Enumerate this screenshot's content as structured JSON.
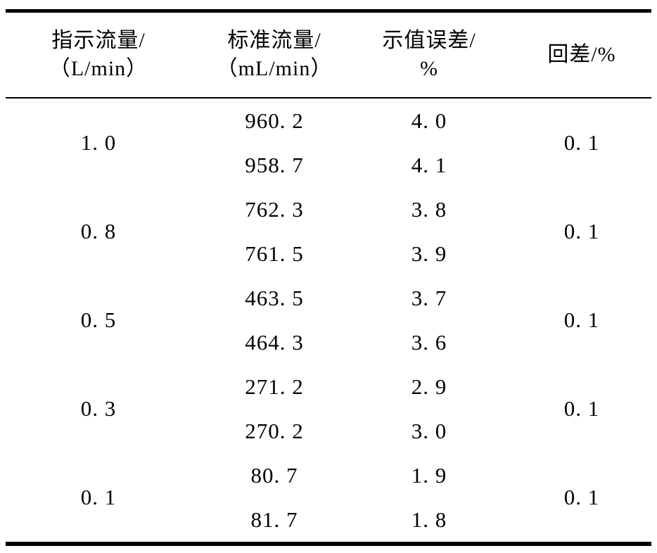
{
  "colors": {
    "background": "#ffffff",
    "text": "#000000",
    "rule": "#000000"
  },
  "table": {
    "style": "three-line-table",
    "columns": [
      {
        "id": "indicated-flow",
        "line1": "指示流量/",
        "line2": "（L/min）"
      },
      {
        "id": "standard-flow",
        "line1": "标准流量/",
        "line2": "（mL/min）"
      },
      {
        "id": "indication-error",
        "line1": "示值误差/",
        "line2": "%"
      },
      {
        "id": "hysteresis",
        "line1": "回差/%"
      }
    ],
    "groups": [
      {
        "indicated": "1. 0",
        "standard": [
          "960. 2",
          "958. 7"
        ],
        "error": [
          "4. 0",
          "4. 1"
        ],
        "hysteresis": "0. 1"
      },
      {
        "indicated": "0. 8",
        "standard": [
          "762. 3",
          "761. 5"
        ],
        "error": [
          "3. 8",
          "3. 9"
        ],
        "hysteresis": "0. 1"
      },
      {
        "indicated": "0. 5",
        "standard": [
          "463. 5",
          "464. 3"
        ],
        "error": [
          "3. 7",
          "3. 6"
        ],
        "hysteresis": "0. 1"
      },
      {
        "indicated": "0. 3",
        "standard": [
          "271. 2",
          "270. 2"
        ],
        "error": [
          "2. 9",
          "3. 0"
        ],
        "hysteresis": "0. 1"
      },
      {
        "indicated": "0. 1",
        "standard": [
          "80. 7",
          "81. 7"
        ],
        "error": [
          "1. 9",
          "1. 8"
        ],
        "hysteresis": "0. 1"
      }
    ]
  },
  "chart_data": {
    "type": "table",
    "title": "",
    "columns": [
      "指示流量/（L/min）",
      "标准流量/（mL/min）",
      "示值误差/%",
      "回差/%"
    ],
    "rows": [
      [
        "1.0",
        "960.2",
        "4.0",
        "0.1"
      ],
      [
        "1.0",
        "958.7",
        "4.1",
        "0.1"
      ],
      [
        "0.8",
        "762.3",
        "3.8",
        "0.1"
      ],
      [
        "0.8",
        "761.5",
        "3.9",
        "0.1"
      ],
      [
        "0.5",
        "463.5",
        "3.7",
        "0.1"
      ],
      [
        "0.5",
        "464.3",
        "3.6",
        "0.1"
      ],
      [
        "0.3",
        "271.2",
        "2.9",
        "0.1"
      ],
      [
        "0.3",
        "270.2",
        "3.0",
        "0.1"
      ],
      [
        "0.1",
        "80.7",
        "1.9",
        "0.1"
      ],
      [
        "0.1",
        "81.7",
        "1.8",
        "0.1"
      ]
    ]
  }
}
